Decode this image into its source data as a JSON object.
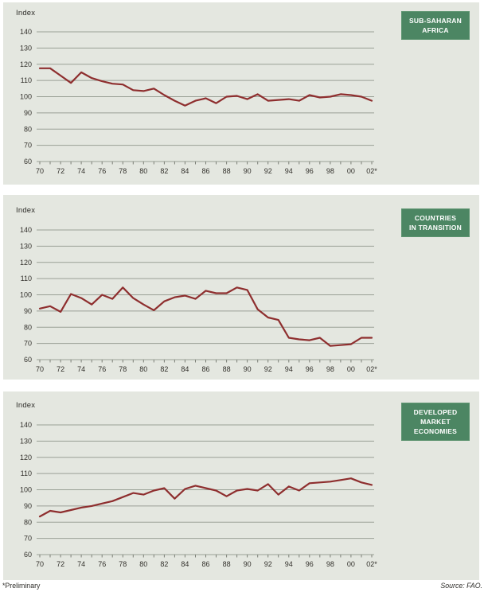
{
  "footnote": "*Preliminary",
  "source": "Source: FAO.",
  "colors": {
    "line": "#8e2e2e",
    "panel_background": "#e4e7e0",
    "badge_background": "#4c8663",
    "grid": "#9aa096",
    "tick": "#7b7f76",
    "label_text": "#33312c"
  },
  "chart_data": [
    {
      "type": "line",
      "title": "SUB-SAHARAN AFRICA",
      "badge_lines": [
        "SUB-SAHARAN",
        "AFRICA"
      ],
      "ylabel": "Index",
      "x": [
        1970,
        1971,
        1972,
        1973,
        1974,
        1975,
        1976,
        1977,
        1978,
        1979,
        1980,
        1981,
        1982,
        1983,
        1984,
        1985,
        1986,
        1987,
        1988,
        1989,
        1990,
        1991,
        1992,
        1993,
        1994,
        1995,
        1996,
        1997,
        1998,
        1999,
        2000,
        2001,
        2002
      ],
      "x_tick_labels": [
        "70",
        "72",
        "74",
        "76",
        "78",
        "80",
        "82",
        "84",
        "86",
        "88",
        "90",
        "92",
        "94",
        "96",
        "98",
        "00",
        "02*"
      ],
      "values": [
        117.5,
        117.5,
        113,
        108.5,
        115,
        111.5,
        109.5,
        108,
        107.5,
        104,
        103.5,
        105,
        101,
        97.5,
        94.5,
        97.5,
        99,
        96,
        100,
        100.5,
        98.5,
        101.5,
        97.5,
        98,
        98.5,
        97.5,
        101,
        99.5,
        100,
        101.5,
        101,
        100,
        97.5
      ],
      "ylim": [
        60,
        140
      ],
      "yticks": [
        140,
        130,
        120,
        110,
        100,
        90,
        80,
        70,
        60
      ],
      "grid": true,
      "legend": "none"
    },
    {
      "type": "line",
      "title": "COUNTRIES IN TRANSITION",
      "badge_lines": [
        "COUNTRIES",
        "IN TRANSITION"
      ],
      "ylabel": "Index",
      "x": [
        1970,
        1971,
        1972,
        1973,
        1974,
        1975,
        1976,
        1977,
        1978,
        1979,
        1980,
        1981,
        1982,
        1983,
        1984,
        1985,
        1986,
        1987,
        1988,
        1989,
        1990,
        1991,
        1992,
        1993,
        1994,
        1995,
        1996,
        1997,
        1998,
        1999,
        2000,
        2001,
        2002
      ],
      "x_tick_labels": [
        "70",
        "72",
        "74",
        "76",
        "78",
        "80",
        "82",
        "84",
        "86",
        "88",
        "90",
        "92",
        "94",
        "96",
        "98",
        "00",
        "02*"
      ],
      "values": [
        91.5,
        93,
        89.5,
        100.5,
        98,
        94,
        100,
        97.5,
        104.5,
        98,
        94,
        90.5,
        96,
        98.5,
        99.5,
        97.5,
        102.5,
        101,
        101,
        104.5,
        103,
        91,
        86,
        84.5,
        73.5,
        72.5,
        72,
        73.5,
        68.5,
        69,
        69.5,
        73.5,
        73.5
      ],
      "ylim": [
        60,
        140
      ],
      "yticks": [
        140,
        130,
        120,
        110,
        100,
        90,
        80,
        70,
        60
      ],
      "grid": true,
      "legend": "none"
    },
    {
      "type": "line",
      "title": "DEVELOPED MARKET ECONOMIES",
      "badge_lines": [
        "DEVELOPED",
        "MARKET",
        "ECONOMIES"
      ],
      "ylabel": "Index",
      "x": [
        1970,
        1971,
        1972,
        1973,
        1974,
        1975,
        1976,
        1977,
        1978,
        1979,
        1980,
        1981,
        1982,
        1983,
        1984,
        1985,
        1986,
        1987,
        1988,
        1989,
        1990,
        1991,
        1992,
        1993,
        1994,
        1995,
        1996,
        1997,
        1998,
        1999,
        2000,
        2001,
        2002
      ],
      "x_tick_labels": [
        "70",
        "72",
        "74",
        "76",
        "78",
        "80",
        "82",
        "84",
        "86",
        "88",
        "90",
        "92",
        "94",
        "96",
        "98",
        "00",
        "02*"
      ],
      "values": [
        83.5,
        87,
        86,
        87.5,
        89,
        90,
        91.5,
        93,
        95.5,
        98,
        97,
        99.5,
        101,
        94.5,
        100.5,
        102.5,
        101,
        99.5,
        96,
        99.5,
        100.5,
        99.5,
        103.5,
        97,
        102,
        99.5,
        104,
        104.5,
        105,
        106,
        107,
        104.5,
        103
      ],
      "ylim": [
        60,
        140
      ],
      "yticks": [
        140,
        130,
        120,
        110,
        100,
        90,
        80,
        70,
        60
      ],
      "grid": true,
      "legend": "none"
    }
  ]
}
